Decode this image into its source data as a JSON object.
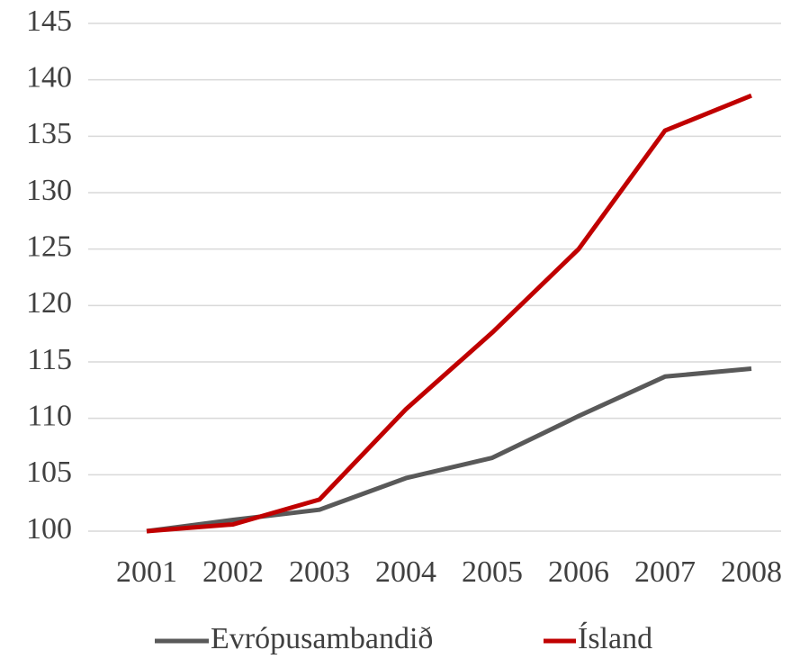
{
  "chart_data": {
    "type": "line",
    "categories": [
      "2001",
      "2002",
      "2003",
      "2004",
      "2005",
      "2006",
      "2007",
      "2008"
    ],
    "series": [
      {
        "name": "Evrópusambandið",
        "color": "#595959",
        "values": [
          100,
          101.0,
          101.9,
          104.7,
          106.5,
          110.2,
          113.7,
          114.4
        ]
      },
      {
        "name": "Ísland",
        "color": "#c00000",
        "values": [
          100,
          100.6,
          102.8,
          110.8,
          117.6,
          125.0,
          135.5,
          138.6
        ]
      }
    ],
    "ylim": [
      100,
      145
    ],
    "yticks": [
      100,
      105,
      110,
      115,
      120,
      125,
      130,
      135,
      140,
      145
    ],
    "grid": true,
    "legend": "bottom"
  }
}
